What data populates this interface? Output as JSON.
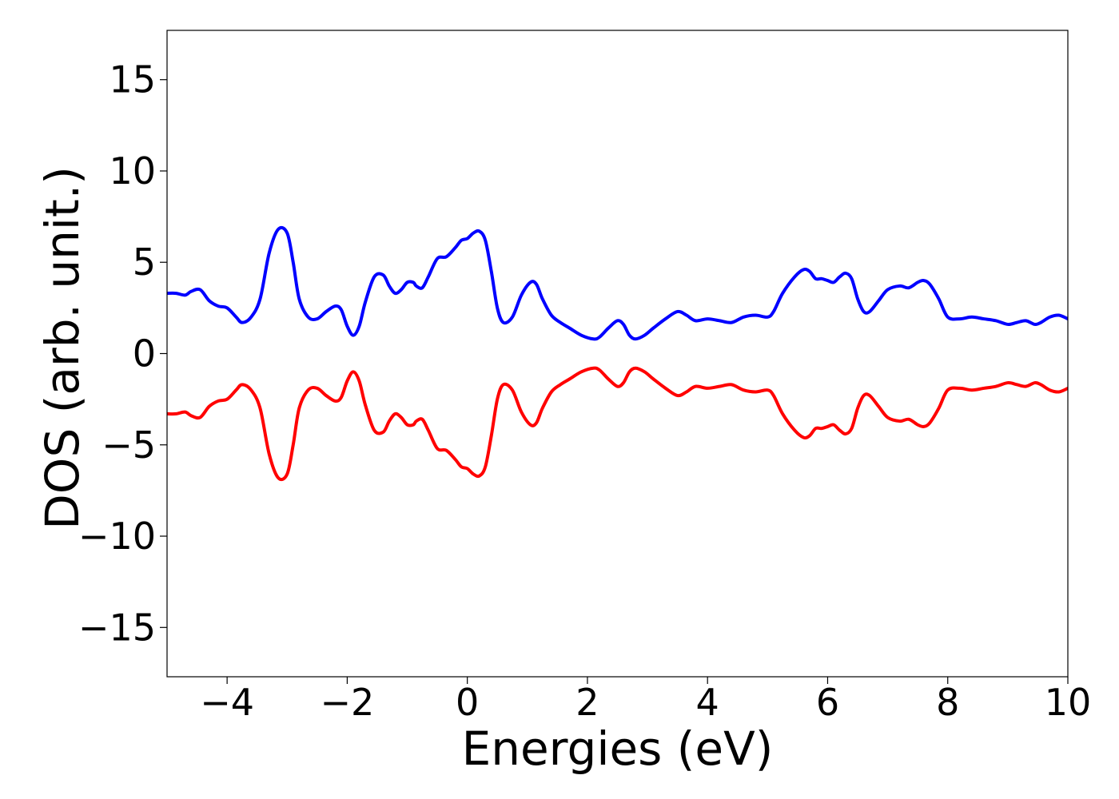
{
  "chart_data": {
    "type": "line",
    "title": "",
    "xlabel": "Energies (eV)",
    "ylabel": "DOS (arb. unit.)",
    "xlim": [
      -5,
      10
    ],
    "ylim": [
      -17.7,
      17.7
    ],
    "grid": false,
    "legend": "none",
    "xticks": [
      -4,
      -2,
      0,
      2,
      4,
      6,
      8,
      10
    ],
    "xtick_labels": [
      "−4",
      "−2",
      "0",
      "2",
      "4",
      "6",
      "8",
      "10"
    ],
    "yticks": [
      -15,
      -10,
      -5,
      0,
      5,
      10,
      15
    ],
    "ytick_labels": [
      "−15",
      "−10",
      "−5",
      "0",
      "5",
      "10",
      "15"
    ],
    "series": [
      {
        "color": "#0000ff",
        "x": [
          -5.0,
          -4.85,
          -4.7,
          -4.6,
          -4.45,
          -4.3,
          -4.15,
          -4.0,
          -3.85,
          -3.75,
          -3.6,
          -3.45,
          -3.3,
          -3.15,
          -3.0,
          -2.9,
          -2.8,
          -2.65,
          -2.5,
          -2.35,
          -2.2,
          -2.1,
          -2.0,
          -1.9,
          -1.8,
          -1.7,
          -1.55,
          -1.4,
          -1.3,
          -1.2,
          -1.1,
          -1.0,
          -0.9,
          -0.85,
          -0.75,
          -0.65,
          -0.5,
          -0.35,
          -0.2,
          -0.1,
          0.0,
          0.1,
          0.2,
          0.3,
          0.4,
          0.5,
          0.6,
          0.75,
          0.9,
          1.05,
          1.15,
          1.25,
          1.4,
          1.55,
          1.7,
          1.9,
          2.1,
          2.2,
          2.35,
          2.5,
          2.6,
          2.7,
          2.8,
          2.95,
          3.1,
          3.3,
          3.5,
          3.65,
          3.8,
          4.0,
          4.2,
          4.4,
          4.6,
          4.8,
          5.0,
          5.1,
          5.25,
          5.45,
          5.6,
          5.7,
          5.8,
          5.9,
          6.0,
          6.1,
          6.2,
          6.3,
          6.4,
          6.5,
          6.6,
          6.7,
          6.85,
          7.0,
          7.2,
          7.35,
          7.5,
          7.6,
          7.7,
          7.85,
          8.0,
          8.2,
          8.4,
          8.6,
          8.8,
          9.0,
          9.15,
          9.3,
          9.45,
          9.55,
          9.7,
          9.85,
          10.0
        ],
        "y": [
          3.3,
          3.3,
          3.2,
          3.4,
          3.5,
          2.9,
          2.6,
          2.5,
          2.0,
          1.7,
          2.0,
          3.0,
          5.5,
          6.8,
          6.6,
          5.0,
          3.0,
          2.0,
          1.9,
          2.3,
          2.6,
          2.4,
          1.5,
          1.0,
          1.5,
          2.8,
          4.2,
          4.3,
          3.7,
          3.3,
          3.5,
          3.9,
          3.9,
          3.7,
          3.6,
          4.2,
          5.2,
          5.3,
          5.8,
          6.2,
          6.3,
          6.6,
          6.7,
          6.2,
          4.5,
          2.5,
          1.7,
          2.0,
          3.2,
          3.9,
          3.8,
          3.0,
          2.1,
          1.7,
          1.4,
          1.0,
          0.8,
          0.9,
          1.4,
          1.8,
          1.6,
          1.0,
          0.8,
          1.0,
          1.4,
          1.9,
          2.3,
          2.1,
          1.8,
          1.9,
          1.8,
          1.7,
          2.0,
          2.1,
          2.0,
          2.3,
          3.3,
          4.2,
          4.6,
          4.5,
          4.1,
          4.1,
          4.0,
          3.9,
          4.2,
          4.4,
          4.1,
          3.0,
          2.3,
          2.3,
          2.9,
          3.5,
          3.7,
          3.6,
          3.9,
          4.0,
          3.8,
          3.0,
          2.0,
          1.9,
          2.0,
          1.9,
          1.8,
          1.6,
          1.7,
          1.8,
          1.6,
          1.7,
          2.0,
          2.1,
          1.9
        ]
      },
      {
        "color": "#ff0000",
        "x": [
          -5.0,
          -4.85,
          -4.7,
          -4.6,
          -4.45,
          -4.3,
          -4.15,
          -4.0,
          -3.85,
          -3.75,
          -3.6,
          -3.45,
          -3.3,
          -3.15,
          -3.0,
          -2.9,
          -2.8,
          -2.65,
          -2.5,
          -2.35,
          -2.2,
          -2.1,
          -2.0,
          -1.9,
          -1.8,
          -1.7,
          -1.55,
          -1.4,
          -1.3,
          -1.2,
          -1.1,
          -1.0,
          -0.9,
          -0.85,
          -0.75,
          -0.65,
          -0.5,
          -0.35,
          -0.2,
          -0.1,
          0.0,
          0.1,
          0.2,
          0.3,
          0.4,
          0.5,
          0.6,
          0.75,
          0.9,
          1.05,
          1.15,
          1.25,
          1.4,
          1.55,
          1.7,
          1.9,
          2.1,
          2.2,
          2.35,
          2.5,
          2.6,
          2.7,
          2.8,
          2.95,
          3.1,
          3.3,
          3.5,
          3.65,
          3.8,
          4.0,
          4.2,
          4.4,
          4.6,
          4.8,
          5.0,
          5.1,
          5.25,
          5.45,
          5.6,
          5.7,
          5.8,
          5.9,
          6.0,
          6.1,
          6.2,
          6.3,
          6.4,
          6.5,
          6.6,
          6.7,
          6.85,
          7.0,
          7.2,
          7.35,
          7.5,
          7.6,
          7.7,
          7.85,
          8.0,
          8.2,
          8.4,
          8.6,
          8.8,
          9.0,
          9.15,
          9.3,
          9.45,
          9.55,
          9.7,
          9.85,
          10.0
        ],
        "y": [
          -3.3,
          -3.3,
          -3.2,
          -3.4,
          -3.5,
          -2.9,
          -2.6,
          -2.5,
          -2.0,
          -1.7,
          -2.0,
          -3.0,
          -5.5,
          -6.8,
          -6.6,
          -5.0,
          -3.0,
          -2.0,
          -1.9,
          -2.3,
          -2.6,
          -2.4,
          -1.5,
          -1.0,
          -1.5,
          -2.8,
          -4.2,
          -4.3,
          -3.7,
          -3.3,
          -3.5,
          -3.9,
          -3.9,
          -3.7,
          -3.6,
          -4.2,
          -5.2,
          -5.3,
          -5.8,
          -6.2,
          -6.3,
          -6.6,
          -6.7,
          -6.2,
          -4.5,
          -2.5,
          -1.7,
          -2.0,
          -3.2,
          -3.9,
          -3.8,
          -3.0,
          -2.1,
          -1.7,
          -1.4,
          -1.0,
          -0.8,
          -0.9,
          -1.4,
          -1.8,
          -1.6,
          -1.0,
          -0.8,
          -1.0,
          -1.4,
          -1.9,
          -2.3,
          -2.1,
          -1.8,
          -1.9,
          -1.8,
          -1.7,
          -2.0,
          -2.1,
          -2.0,
          -2.3,
          -3.3,
          -4.2,
          -4.6,
          -4.5,
          -4.1,
          -4.1,
          -4.0,
          -3.9,
          -4.2,
          -4.4,
          -4.1,
          -3.0,
          -2.3,
          -2.3,
          -2.9,
          -3.5,
          -3.7,
          -3.6,
          -3.9,
          -4.0,
          -3.8,
          -3.0,
          -2.0,
          -1.9,
          -2.0,
          -1.9,
          -1.8,
          -1.6,
          -1.7,
          -1.8,
          -1.6,
          -1.7,
          -2.0,
          -2.1,
          -1.9
        ]
      }
    ]
  }
}
